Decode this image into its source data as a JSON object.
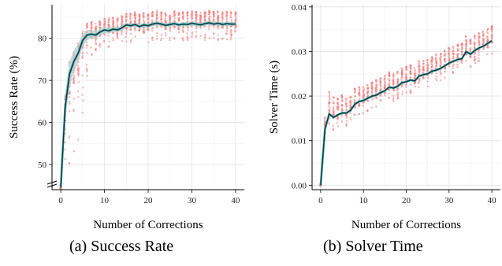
{
  "chart_data": [
    {
      "type": "scatter",
      "subtitle": "Success Rate",
      "caption_label": "(a)",
      "xlabel": "Number of Corrections",
      "ylabel": "Success Rate (%)",
      "xlim": [
        -2,
        42
      ],
      "ylim": [
        44,
        88
      ],
      "x_ticks": [
        0,
        10,
        20,
        30,
        40
      ],
      "y_ticks": [
        50,
        60,
        70,
        80
      ],
      "axis_break": true,
      "grid": true,
      "colors": {
        "points": "#f08080",
        "line": "#1f2e2e",
        "trend": "#2ab0b8",
        "band": "#b7c9c9"
      },
      "series": [
        {
          "values_x": [
            0,
            1,
            2,
            3,
            4,
            5,
            6,
            7,
            8,
            9,
            10,
            11,
            12,
            13,
            14,
            15,
            16,
            17,
            18,
            19,
            20,
            21,
            22,
            23,
            24,
            25,
            26,
            27,
            28,
            29,
            30,
            31,
            32,
            33,
            34,
            35,
            36,
            37,
            38,
            39,
            40
          ],
          "mean": [
            44.5,
            63.5,
            71.5,
            74.5,
            76.5,
            79.5,
            80.8,
            81.0,
            80.8,
            81.5,
            82.0,
            81.8,
            82.2,
            82.0,
            82.5,
            83.2,
            83.0,
            83.3,
            82.8,
            83.2,
            83.0,
            83.4,
            83.6,
            83.4,
            83.1,
            83.3,
            83.5,
            83.2,
            83.4,
            83.3,
            83.6,
            83.4,
            83.2,
            83.5,
            83.7,
            83.4,
            83.6,
            83.3,
            83.5,
            83.4,
            83.4
          ],
          "band_half_width": [
            0.8,
            3.2,
            3.0,
            2.6,
            2.2,
            1.6,
            1.2,
            1.0,
            0.9,
            0.8,
            0.8,
            0.7,
            0.7,
            0.6,
            0.6,
            0.6,
            0.5,
            0.5,
            0.5,
            0.5,
            0.5,
            0.5,
            0.5,
            0.5,
            0.5,
            0.5,
            0.5,
            0.5,
            0.5,
            0.5,
            0.5,
            0.5,
            0.5,
            0.5,
            0.5,
            0.5,
            0.5,
            0.5,
            0.5,
            0.5,
            0.5
          ],
          "point_spread_low": [
            2,
            16,
            22,
            22,
            21,
            19,
            10,
            5,
            4,
            4,
            4,
            4,
            4,
            4,
            4,
            4,
            4,
            4,
            4,
            4,
            4,
            4,
            4,
            4,
            4,
            4,
            4,
            4,
            4,
            4,
            4,
            4,
            4,
            4,
            4,
            4,
            4,
            4,
            4,
            4,
            4
          ],
          "point_spread_high": [
            1,
            3,
            3,
            3,
            3,
            3,
            3,
            3,
            3,
            3,
            3,
            3,
            3,
            3,
            3,
            3,
            3,
            3,
            3,
            3,
            3,
            3,
            3,
            3,
            3,
            3,
            3,
            3,
            3,
            3,
            3,
            3,
            3,
            3,
            3,
            3,
            3,
            3,
            3,
            3,
            3
          ]
        }
      ]
    },
    {
      "type": "scatter",
      "subtitle": "Solver Time",
      "caption_label": "(b)",
      "xlabel": "Number of Corrections",
      "ylabel": "Solver Time (s)",
      "xlim": [
        -2,
        42
      ],
      "ylim": [
        -0.001,
        0.0405
      ],
      "x_ticks": [
        0,
        10,
        20,
        30,
        40
      ],
      "y_ticks": [
        0.0,
        0.01,
        0.02,
        0.03,
        0.04
      ],
      "y_tick_labels": [
        "0.00",
        "0.01",
        "0.02",
        "0.03",
        "0.04"
      ],
      "grid": true,
      "colors": {
        "points": "#f08080",
        "line": "#1f2e2e",
        "trend": "#2ab0b8",
        "band": "#b7c9c9"
      },
      "series": [
        {
          "values_x": [
            0,
            1,
            2,
            3,
            4,
            5,
            6,
            7,
            8,
            9,
            10,
            11,
            12,
            13,
            14,
            15,
            16,
            17,
            18,
            19,
            20,
            21,
            22,
            23,
            24,
            25,
            26,
            27,
            28,
            29,
            30,
            31,
            32,
            33,
            34,
            35,
            36,
            37,
            38,
            39,
            40
          ],
          "mean": [
            0.0,
            0.0125,
            0.016,
            0.0152,
            0.0158,
            0.0162,
            0.0162,
            0.0168,
            0.0182,
            0.0188,
            0.019,
            0.0195,
            0.02,
            0.0202,
            0.0208,
            0.0212,
            0.022,
            0.0218,
            0.0222,
            0.023,
            0.0232,
            0.0236,
            0.0234,
            0.0245,
            0.0248,
            0.025,
            0.0256,
            0.0258,
            0.0262,
            0.0268,
            0.0274,
            0.0278,
            0.0282,
            0.0284,
            0.03,
            0.0294,
            0.0302,
            0.0308,
            0.0312,
            0.0318,
            0.0324
          ],
          "band_half_width": [
            0.0001,
            0.0005,
            0.0003,
            0.0003,
            0.0003,
            0.0003,
            0.0003,
            0.0003,
            0.0003,
            0.0003,
            0.0003,
            0.0003,
            0.0003,
            0.0003,
            0.0003,
            0.0003,
            0.0003,
            0.0003,
            0.0003,
            0.0003,
            0.0003,
            0.0003,
            0.0003,
            0.0003,
            0.0003,
            0.0003,
            0.0003,
            0.0003,
            0.0003,
            0.0003,
            0.0003,
            0.0003,
            0.0003,
            0.0003,
            0.0003,
            0.0003,
            0.0003,
            0.0003,
            0.0003,
            0.0003,
            0.0003
          ],
          "point_spread_low": [
            0.0003,
            0.0025,
            0.003,
            0.0028,
            0.003,
            0.003,
            0.003,
            0.003,
            0.003,
            0.003,
            0.003,
            0.003,
            0.003,
            0.003,
            0.003,
            0.003,
            0.003,
            0.003,
            0.003,
            0.003,
            0.003,
            0.003,
            0.003,
            0.003,
            0.003,
            0.003,
            0.003,
            0.003,
            0.003,
            0.003,
            0.003,
            0.003,
            0.003,
            0.003,
            0.003,
            0.003,
            0.003,
            0.003,
            0.003,
            0.003,
            0.003
          ],
          "point_spread_high": [
            0.0003,
            0.003,
            0.005,
            0.0045,
            0.004,
            0.004,
            0.0035,
            0.0035,
            0.0035,
            0.0035,
            0.0035,
            0.0035,
            0.0035,
            0.0035,
            0.0035,
            0.0035,
            0.0035,
            0.0035,
            0.0035,
            0.0035,
            0.0035,
            0.0035,
            0.0035,
            0.0035,
            0.0035,
            0.0035,
            0.0035,
            0.0035,
            0.0035,
            0.0035,
            0.0035,
            0.0035,
            0.0035,
            0.0035,
            0.0035,
            0.0035,
            0.0035,
            0.0035,
            0.0035,
            0.0035,
            0.0035
          ]
        }
      ]
    }
  ]
}
